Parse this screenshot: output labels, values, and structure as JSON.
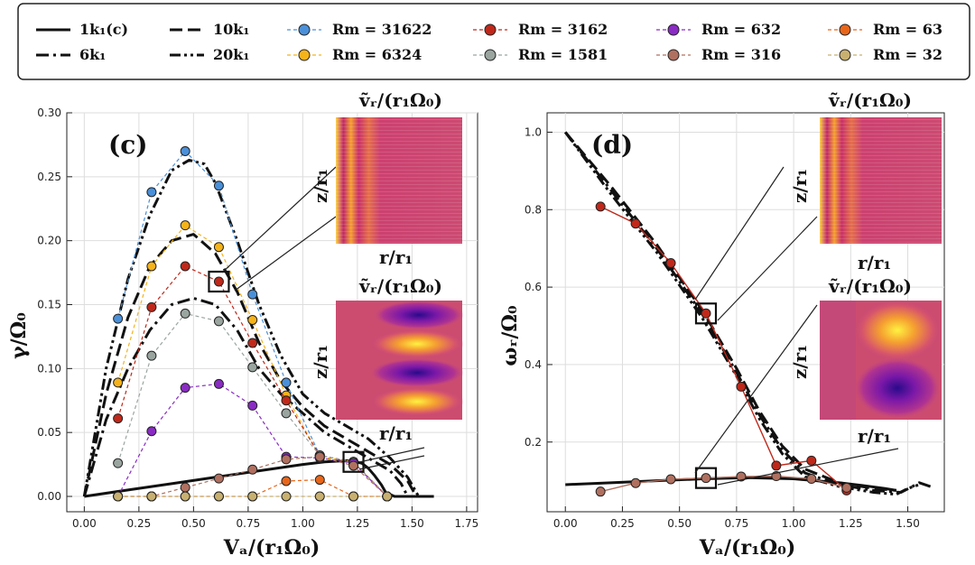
{
  "legend": {
    "curves": [
      {
        "label": "1k₁(c)",
        "dash": "solid"
      },
      {
        "label": "6k₁",
        "dash": "dashdot"
      },
      {
        "label": "10k₁",
        "dash": "dashed"
      },
      {
        "label": "20k₁",
        "dash": "dashdotdot"
      }
    ],
    "markers": [
      {
        "label": "Rm = 31622",
        "color": "#4a90d9"
      },
      {
        "label": "Rm = 6324",
        "color": "#f5b31a"
      },
      {
        "label": "Rm = 3162",
        "color": "#c0281a"
      },
      {
        "label": "Rm = 1581",
        "color": "#9aa5a0"
      },
      {
        "label": "Rm = 632",
        "color": "#8a2cc4"
      },
      {
        "label": "Rm = 316",
        "color": "#b07060"
      },
      {
        "label": "Rm = 63",
        "color": "#e8661a"
      },
      {
        "label": "Rm = 32",
        "color": "#c8b070"
      }
    ]
  },
  "panel_c": {
    "label": "(c)",
    "xlabel": "Vₐ/(r₁Ω₀)",
    "xlabel_text": "VA/(r1Ω0)",
    "ylabel": "γ/Ω₀",
    "xticks": [
      "0.00",
      "0.25",
      "0.50",
      "0.75",
      "1.00",
      "1.25",
      "1.50",
      "1.75"
    ],
    "yticks": [
      "0.00",
      "0.05",
      "0.10",
      "0.15",
      "0.20",
      "0.25",
      "0.30"
    ],
    "inset_top_title": "ṽᵣ/(r₁Ω₀)",
    "inset_top_ylabel": "z/r₁",
    "inset_top_xlabel": "r/r₁",
    "inset_bottom_title": "ṽᵣ/(r₁Ω₀)",
    "inset_bottom_ylabel": "z/r₁",
    "inset_bottom_xlabel": "r/r₁"
  },
  "panel_d": {
    "label": "(d)",
    "xlabel": "Vₐ/(r₁Ω₀)",
    "ylabel": "ωᵣ/Ω₀",
    "xticks": [
      "0.00",
      "0.25",
      "0.50",
      "0.75",
      "1.00",
      "1.25",
      "1.50"
    ],
    "yticks": [
      "0.2",
      "0.4",
      "0.6",
      "0.8",
      "1.0"
    ],
    "inset_top_title": "ṽᵣ/(r₁Ω₀)",
    "inset_top_ylabel": "z/r₁",
    "inset_top_xlabel": "r/r₁",
    "inset_bottom_title": "ṽᵣ/(r₁Ω₀)",
    "inset_bottom_ylabel": "z/r₁",
    "inset_bottom_xlabel": "r/r₁"
  },
  "chart_data": [
    {
      "type": "line",
      "panel": "c",
      "title": "(c)",
      "xlabel": "VA/(r1Ω0)",
      "ylabel": "γ/Ω0",
      "xlim": [
        -0.08,
        1.8
      ],
      "ylim": [
        -0.012,
        0.3
      ],
      "curves": [
        {
          "name": "1k1(c)",
          "dash": "solid",
          "x": [
            0,
            0.2,
            0.4,
            0.6,
            0.8,
            1.0,
            1.1,
            1.2,
            1.27,
            1.3,
            1.33,
            1.36,
            1.38,
            1.42,
            1.6
          ],
          "y": [
            0,
            0.005,
            0.01,
            0.015,
            0.02,
            0.025,
            0.027,
            0.028,
            0.026,
            0.022,
            0.016,
            0.009,
            0.003,
            0,
            0
          ]
        },
        {
          "name": "6k1",
          "dash": "dashdot",
          "x": [
            0,
            0.05,
            0.1,
            0.2,
            0.3,
            0.4,
            0.5,
            0.6,
            0.7,
            0.8,
            0.9,
            1.0,
            1.1,
            1.2,
            1.3,
            1.4,
            1.45,
            1.48
          ],
          "y": [
            0,
            0.03,
            0.06,
            0.1,
            0.13,
            0.15,
            0.155,
            0.15,
            0.13,
            0.1,
            0.08,
            0.065,
            0.05,
            0.04,
            0.03,
            0.02,
            0.01,
            0
          ]
        },
        {
          "name": "10k1",
          "dash": "dashed",
          "x": [
            0,
            0.05,
            0.1,
            0.2,
            0.3,
            0.4,
            0.5,
            0.6,
            0.7,
            0.8,
            0.9,
            1.0,
            1.1,
            1.2,
            1.3,
            1.4,
            1.48,
            1.52
          ],
          "y": [
            0,
            0.04,
            0.08,
            0.14,
            0.18,
            0.2,
            0.205,
            0.19,
            0.16,
            0.12,
            0.09,
            0.07,
            0.055,
            0.045,
            0.035,
            0.025,
            0.012,
            0
          ]
        },
        {
          "name": "20k1",
          "dash": "dashdotdot",
          "x": [
            0,
            0.05,
            0.1,
            0.2,
            0.3,
            0.4,
            0.48,
            0.55,
            0.6,
            0.7,
            0.8,
            0.9,
            1.0,
            1.1,
            1.2,
            1.3,
            1.4,
            1.48,
            1.53
          ],
          "y": [
            0,
            0.05,
            0.1,
            0.17,
            0.22,
            0.255,
            0.263,
            0.26,
            0.245,
            0.2,
            0.15,
            0.11,
            0.08,
            0.065,
            0.055,
            0.045,
            0.03,
            0.015,
            0
          ]
        }
      ],
      "x": [
        0.154,
        0.308,
        0.462,
        0.616,
        0.77,
        0.924,
        1.078,
        1.232,
        1.386
      ],
      "series": [
        {
          "name": "Rm = 31622",
          "color": "#4a90d9",
          "values": [
            0.139,
            0.238,
            0.27,
            0.243,
            0.158,
            0.089,
            0.032,
            0.027,
            0
          ]
        },
        {
          "name": "Rm = 6324",
          "color": "#f5b31a",
          "values": [
            0.089,
            0.18,
            0.212,
            0.195,
            0.138,
            0.079,
            0.031,
            0.027,
            0
          ]
        },
        {
          "name": "Rm = 3162",
          "color": "#c0281a",
          "values": [
            0.061,
            0.148,
            0.18,
            0.168,
            0.12,
            0.075,
            0.032,
            0.027,
            0
          ]
        },
        {
          "name": "Rm = 1581",
          "color": "#9aa5a0",
          "values": [
            0.026,
            0.11,
            0.143,
            0.137,
            0.101,
            0.065,
            0.032,
            0.027,
            0
          ]
        },
        {
          "name": "Rm = 632",
          "color": "#8a2cc4",
          "values": [
            0,
            0.051,
            0.085,
            0.088,
            0.071,
            0.031,
            0.03,
            0.026,
            0
          ]
        },
        {
          "name": "Rm = 316",
          "color": "#b07060",
          "values": [
            0,
            0,
            0.007,
            0.014,
            0.021,
            0.029,
            0.031,
            0.024,
            0
          ]
        },
        {
          "name": "Rm = 63",
          "color": "#e8661a",
          "values": [
            0,
            0,
            0,
            0,
            0,
            0.012,
            0.013,
            0,
            0
          ]
        },
        {
          "name": "Rm = 32",
          "color": "#c8b070",
          "values": [
            0,
            0,
            0,
            0,
            0,
            0,
            0,
            0,
            0
          ]
        }
      ],
      "highlights": [
        {
          "x": 0.616,
          "y": 0.168
        },
        {
          "x": 1.232,
          "y": 0.027
        }
      ]
    },
    {
      "type": "line",
      "panel": "d",
      "title": "(d)",
      "xlabel": "VA/(r1Ω0)",
      "ylabel": "ωr/Ω0",
      "xlim": [
        -0.08,
        1.66
      ],
      "ylim": [
        0.02,
        1.05
      ],
      "curves": [
        {
          "name": "1k1(c)",
          "dash": "solid",
          "x": [
            0,
            0.2,
            0.4,
            0.6,
            0.8,
            1.0,
            1.2,
            1.3,
            1.4,
            1.45
          ],
          "y": [
            0.09,
            0.095,
            0.1,
            0.105,
            0.108,
            0.105,
            0.095,
            0.088,
            0.08,
            0.075
          ]
        },
        {
          "name": "6k1",
          "dash": "dashdot",
          "x": [
            0,
            0.2,
            0.4,
            0.6,
            0.75,
            0.85,
            0.95,
            1.05,
            1.2,
            1.35,
            1.47,
            1.52,
            1.55,
            1.6
          ],
          "y": [
            1.0,
            0.85,
            0.7,
            0.53,
            0.38,
            0.27,
            0.18,
            0.12,
            0.09,
            0.075,
            0.07,
            0.085,
            0.095,
            0.085
          ]
        },
        {
          "name": "10k1",
          "dash": "dashed",
          "x": [
            0,
            0.2,
            0.4,
            0.6,
            0.75,
            0.85,
            0.95,
            1.05,
            1.2,
            1.35,
            1.45
          ],
          "y": [
            1.0,
            0.86,
            0.71,
            0.54,
            0.39,
            0.28,
            0.19,
            0.13,
            0.095,
            0.08,
            0.075
          ]
        },
        {
          "name": "20k1",
          "dash": "dashdotdot",
          "x": [
            0,
            0.2,
            0.4,
            0.6,
            0.75,
            0.85,
            0.95,
            1.05,
            1.2,
            1.35,
            1.45,
            1.5,
            1.55
          ],
          "y": [
            1.0,
            0.84,
            0.69,
            0.52,
            0.37,
            0.26,
            0.17,
            0.11,
            0.085,
            0.07,
            0.065,
            0.08,
            0.09
          ]
        }
      ],
      "series": [
        {
          "name": "Rm = 3162",
          "color": "#c0281a",
          "x": [
            0.154,
            0.308,
            0.462,
            0.616,
            0.77,
            0.924,
            1.078,
            1.232
          ],
          "values": [
            0.808,
            0.764,
            0.662,
            0.532,
            0.343,
            0.139,
            0.152,
            0.075
          ]
        },
        {
          "name": "Rm = 316",
          "color": "#b07060",
          "x": [
            0.154,
            0.308,
            0.462,
            0.616,
            0.77,
            0.924,
            1.078,
            1.232
          ],
          "values": [
            0.072,
            0.094,
            0.104,
            0.107,
            0.111,
            0.112,
            0.105,
            0.082
          ]
        }
      ],
      "highlights": [
        {
          "x": 0.616,
          "y": 0.532
        },
        {
          "x": 0.616,
          "y": 0.107
        }
      ]
    }
  ]
}
